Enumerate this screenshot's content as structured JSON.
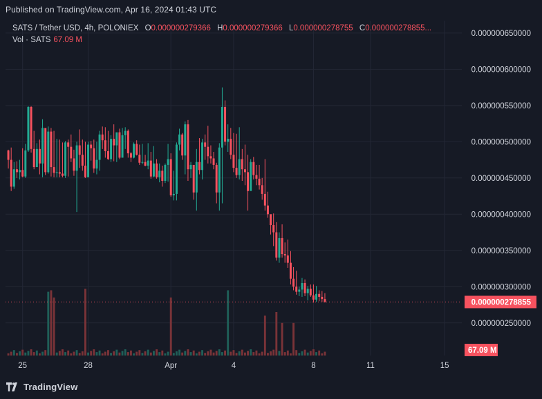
{
  "header": {
    "published": "Published on TradingView.com, Apr 16, 2024 01:43 UTC"
  },
  "legend": {
    "symbol": "SATS / Tether USD, 4h, POLONIEX",
    "o_key": "O",
    "o_val": "0.000000279366",
    "h_key": "H",
    "h_val": "0.000000279366",
    "l_key": "L",
    "l_val": "0.000000278755",
    "c_key": "C",
    "c_val": "0.000000278855...",
    "vol_label": "Vol · SATS",
    "vol_val": "67.09 M"
  },
  "footer": {
    "brand": "TradingView"
  },
  "colors": {
    "up": "#22ab94",
    "down": "#f7525f",
    "up_vol": "#1f5f58",
    "down_vol": "#7a3338",
    "bg": "#161a25",
    "grid": "#232735",
    "price_tag": "#f7525f"
  },
  "chart_data": {
    "type": "candlestick",
    "title": "SATS / Tether USD, 4h, POLONIEX",
    "y_axis": {
      "ticks": [
        "0.000000650000",
        "0.000000600000",
        "0.000000550000",
        "0.000000500000",
        "0.000000450000",
        "0.000000400000",
        "0.000000350000",
        "0.000000300000",
        "0.000000250000"
      ],
      "tick_values": [
        650,
        600,
        550,
        500,
        450,
        400,
        350,
        300,
        250
      ],
      "unit_scale": "1e-9",
      "ylim": [
        205,
        667
      ]
    },
    "x_axis": {
      "tick_labels": [
        "25",
        "28",
        "Apr",
        "4",
        "8",
        "11",
        "15"
      ],
      "tick_index": [
        5,
        28,
        57,
        79,
        107,
        127,
        153
      ]
    },
    "last_price": {
      "label": "0.000000278855",
      "value": 278.855
    },
    "last_volume": {
      "label": "67.09 M"
    },
    "volume_max_millions": 460,
    "candles_ohlc_1e-9": [
      [
        488,
        489,
        463,
        475
      ],
      [
        475,
        492,
        432,
        438
      ],
      [
        438,
        472,
        435,
        462
      ],
      [
        462,
        473,
        450,
        458
      ],
      [
        458,
        475,
        448,
        461
      ],
      [
        461,
        491,
        451,
        452
      ],
      [
        452,
        497,
        450,
        488
      ],
      [
        488,
        549,
        486,
        548
      ],
      [
        548,
        549,
        485,
        490
      ],
      [
        490,
        515,
        462,
        465
      ],
      [
        465,
        498,
        465,
        490
      ],
      [
        490,
        503,
        455,
        470
      ],
      [
        470,
        531,
        451,
        519
      ],
      [
        519,
        516,
        454,
        458
      ],
      [
        458,
        521,
        456,
        514
      ],
      [
        514,
        519,
        452,
        465
      ],
      [
        465,
        515,
        451,
        457
      ],
      [
        457,
        504,
        451,
        458
      ],
      [
        458,
        503,
        451,
        456
      ],
      [
        456,
        499,
        451,
        453
      ],
      [
        453,
        501,
        450,
        499
      ],
      [
        499,
        503,
        452,
        493
      ],
      [
        493,
        510,
        472,
        477
      ],
      [
        477,
        489,
        453,
        460
      ],
      [
        460,
        500,
        403,
        495
      ],
      [
        495,
        517,
        464,
        482
      ],
      [
        482,
        503,
        460,
        467
      ],
      [
        467,
        500,
        450,
        451
      ],
      [
        451,
        500,
        451,
        496
      ],
      [
        496,
        501,
        474,
        491
      ],
      [
        491,
        503,
        457,
        463
      ],
      [
        463,
        500,
        455,
        475
      ],
      [
        475,
        515,
        460,
        510
      ],
      [
        510,
        521,
        490,
        502
      ],
      [
        502,
        520,
        478,
        487
      ],
      [
        487,
        515,
        475,
        476
      ],
      [
        476,
        509,
        472,
        504
      ],
      [
        504,
        524,
        473,
        495
      ],
      [
        495,
        509,
        472,
        513
      ],
      [
        513,
        518,
        476,
        478
      ],
      [
        478,
        519,
        478,
        509
      ],
      [
        509,
        520,
        490,
        515
      ],
      [
        515,
        517,
        478,
        484
      ],
      [
        484,
        486,
        472,
        478
      ],
      [
        478,
        499,
        477,
        497
      ],
      [
        497,
        502,
        481,
        482
      ],
      [
        482,
        496,
        468,
        471
      ],
      [
        471,
        497,
        469,
        472
      ],
      [
        472,
        482,
        466,
        467
      ],
      [
        467,
        498,
        462,
        474
      ],
      [
        474,
        486,
        449,
        452
      ],
      [
        452,
        494,
        451,
        470
      ],
      [
        470,
        476,
        449,
        451
      ],
      [
        451,
        470,
        444,
        460
      ],
      [
        460,
        467,
        438,
        446
      ],
      [
        446,
        470,
        443,
        468
      ],
      [
        468,
        497,
        445,
        476
      ],
      [
        476,
        484,
        424,
        426
      ],
      [
        426,
        460,
        419,
        428
      ],
      [
        428,
        499,
        419,
        496
      ],
      [
        496,
        518,
        488,
        510
      ],
      [
        510,
        512,
        475,
        481
      ],
      [
        481,
        528,
        455,
        524
      ],
      [
        524,
        530,
        446,
        462
      ],
      [
        462,
        472,
        450,
        468
      ],
      [
        468,
        466,
        420,
        430
      ],
      [
        430,
        490,
        405,
        472
      ],
      [
        472,
        505,
        455,
        461
      ],
      [
        461,
        504,
        448,
        499
      ],
      [
        499,
        510,
        475,
        493
      ],
      [
        493,
        522,
        470,
        480
      ],
      [
        480,
        495,
        470,
        477
      ],
      [
        477,
        486,
        462,
        468
      ],
      [
        468,
        471,
        415,
        430
      ],
      [
        430,
        498,
        405,
        492
      ],
      [
        492,
        575,
        415,
        548
      ],
      [
        548,
        557,
        495,
        500
      ],
      [
        500,
        524,
        486,
        504
      ],
      [
        504,
        519,
        476,
        482
      ],
      [
        482,
        512,
        458,
        464
      ],
      [
        464,
        511,
        450,
        454
      ],
      [
        454,
        520,
        448,
        476
      ],
      [
        476,
        490,
        446,
        462
      ],
      [
        462,
        496,
        440,
        458
      ],
      [
        458,
        482,
        405,
        432
      ],
      [
        432,
        476,
        448,
        472
      ],
      [
        472,
        479,
        448,
        454
      ],
      [
        454,
        468,
        440,
        449
      ],
      [
        449,
        468,
        434,
        440
      ],
      [
        440,
        450,
        420,
        428
      ],
      [
        428,
        476,
        405,
        412
      ],
      [
        412,
        431,
        395,
        400
      ],
      [
        400,
        399,
        372,
        385
      ],
      [
        385,
        401,
        356,
        375
      ],
      [
        375,
        389,
        336,
        340
      ],
      [
        340,
        375,
        333,
        367
      ],
      [
        367,
        386,
        340,
        345
      ],
      [
        345,
        361,
        333,
        343
      ],
      [
        343,
        365,
        326,
        333
      ],
      [
        333,
        349,
        303,
        311
      ],
      [
        311,
        327,
        295,
        300
      ],
      [
        300,
        322,
        289,
        293
      ],
      [
        293,
        300,
        287,
        296
      ],
      [
        296,
        312,
        286,
        305
      ],
      [
        305,
        310,
        287,
        291
      ],
      [
        291,
        301,
        281,
        297
      ],
      [
        297,
        303,
        286,
        288
      ],
      [
        288,
        303,
        278,
        282
      ],
      [
        282,
        301,
        279,
        290
      ],
      [
        290,
        295,
        280,
        286
      ],
      [
        286,
        294,
        279,
        283
      ],
      [
        283,
        291,
        278,
        279
      ]
    ],
    "candles_simplified_note": ""
  }
}
